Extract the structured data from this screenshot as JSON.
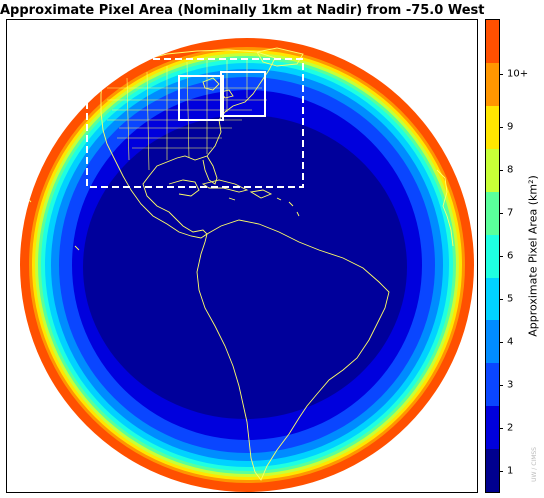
{
  "title": "Approximate Pixel Area (Nominally 1km at Nadir) from -75.0 West",
  "colorbar": {
    "label": "Approximate Pixel Area (km²)",
    "ticks": [
      "1",
      "2",
      "3",
      "4",
      "5",
      "6",
      "7",
      "8",
      "9",
      "10+"
    ],
    "colors": [
      "#00008f",
      "#0000dd",
      "#0a46ff",
      "#008cff",
      "#00d2ff",
      "#1effe1",
      "#5aff9b",
      "#c8ff37",
      "#ffe600",
      "#ff9600",
      "#ff5000"
    ]
  },
  "map": {
    "projection": "geostationary full disk",
    "sub_satellite_longitude": -75.0,
    "zone_colors": {
      "nadir": "#00009b",
      "ring_2": "#0000dd",
      "ring_3": "#0a46ff",
      "ring_4": "#008cff",
      "ring_5": "#00d2ff",
      "ring_6": "#1effe1",
      "ring_7": "#5aff9b",
      "ring_8": "#c8ff37",
      "ring_9": "#ffe600",
      "ring_10": "#ff9600",
      "ring_limb": "#ff5000"
    },
    "coastline_color": "#ffff66",
    "boxes": [
      {
        "name": "CONUS sector",
        "style": "dashed",
        "color": "#ffffff"
      },
      {
        "name": "Mesoscale sector 1",
        "style": "solid",
        "color": "#ffffff"
      },
      {
        "name": "Mesoscale sector 2",
        "style": "solid",
        "color": "#ffffff"
      }
    ]
  },
  "credit": "UW / CIMSS"
}
